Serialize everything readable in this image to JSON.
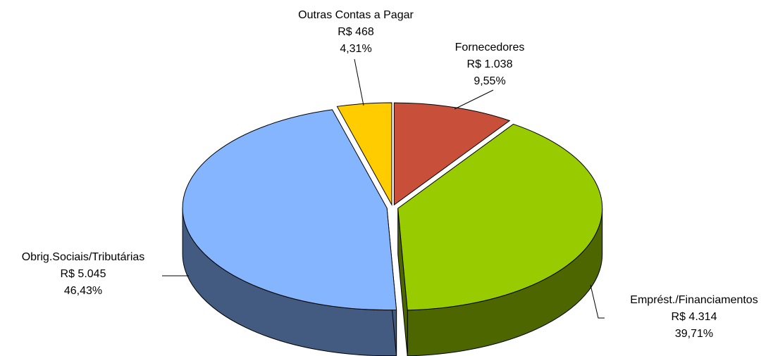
{
  "chart_data": {
    "type": "pie3d",
    "categories": [
      "Fornecedores",
      "Emprést./Financiamentos",
      "Obrig.Sociais/Tributárias",
      "Outras Contas a Pagar"
    ],
    "values": [
      1038,
      4314,
      5045,
      468
    ],
    "value_labels": [
      "R$ 1.038",
      "R$ 4.314",
      "R$ 5.045",
      "R$ 468"
    ],
    "percentages": [
      9.55,
      39.71,
      46.43,
      4.31
    ],
    "percentage_labels": [
      "9,55%",
      "39,71%",
      "46,43%",
      "4,31%"
    ],
    "colors": [
      "#C8503A",
      "#99CC00",
      "#85B5FF",
      "#FFCC00"
    ]
  }
}
